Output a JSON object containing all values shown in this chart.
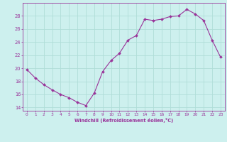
{
  "x": [
    0,
    1,
    2,
    3,
    4,
    5,
    6,
    7,
    8,
    9,
    10,
    11,
    12,
    13,
    14,
    15,
    16,
    17,
    18,
    19,
    20,
    21,
    22,
    23
  ],
  "y": [
    19.8,
    18.5,
    17.5,
    16.7,
    16.0,
    15.5,
    14.8,
    14.3,
    16.2,
    19.5,
    21.2,
    22.3,
    24.3,
    25.0,
    27.5,
    27.3,
    27.5,
    27.9,
    28.0,
    29.0,
    28.3,
    27.3,
    24.3,
    21.7
  ],
  "xlabel": "Windchill (Refroidissement éolien,°C)",
  "ylim": [
    13.5,
    30.0
  ],
  "xlim": [
    -0.5,
    23.5
  ],
  "yticks": [
    14,
    16,
    18,
    20,
    22,
    24,
    26,
    28
  ],
  "xticks": [
    0,
    1,
    2,
    3,
    4,
    5,
    6,
    7,
    8,
    9,
    10,
    11,
    12,
    13,
    14,
    15,
    16,
    17,
    18,
    19,
    20,
    21,
    22,
    23
  ],
  "line_color": "#993399",
  "marker_color": "#993399",
  "bg_color": "#cdf0ee",
  "grid_color": "#b0ddd8",
  "axis_color": "#993399",
  "tick_color": "#993399",
  "xlabel_color": "#993399"
}
